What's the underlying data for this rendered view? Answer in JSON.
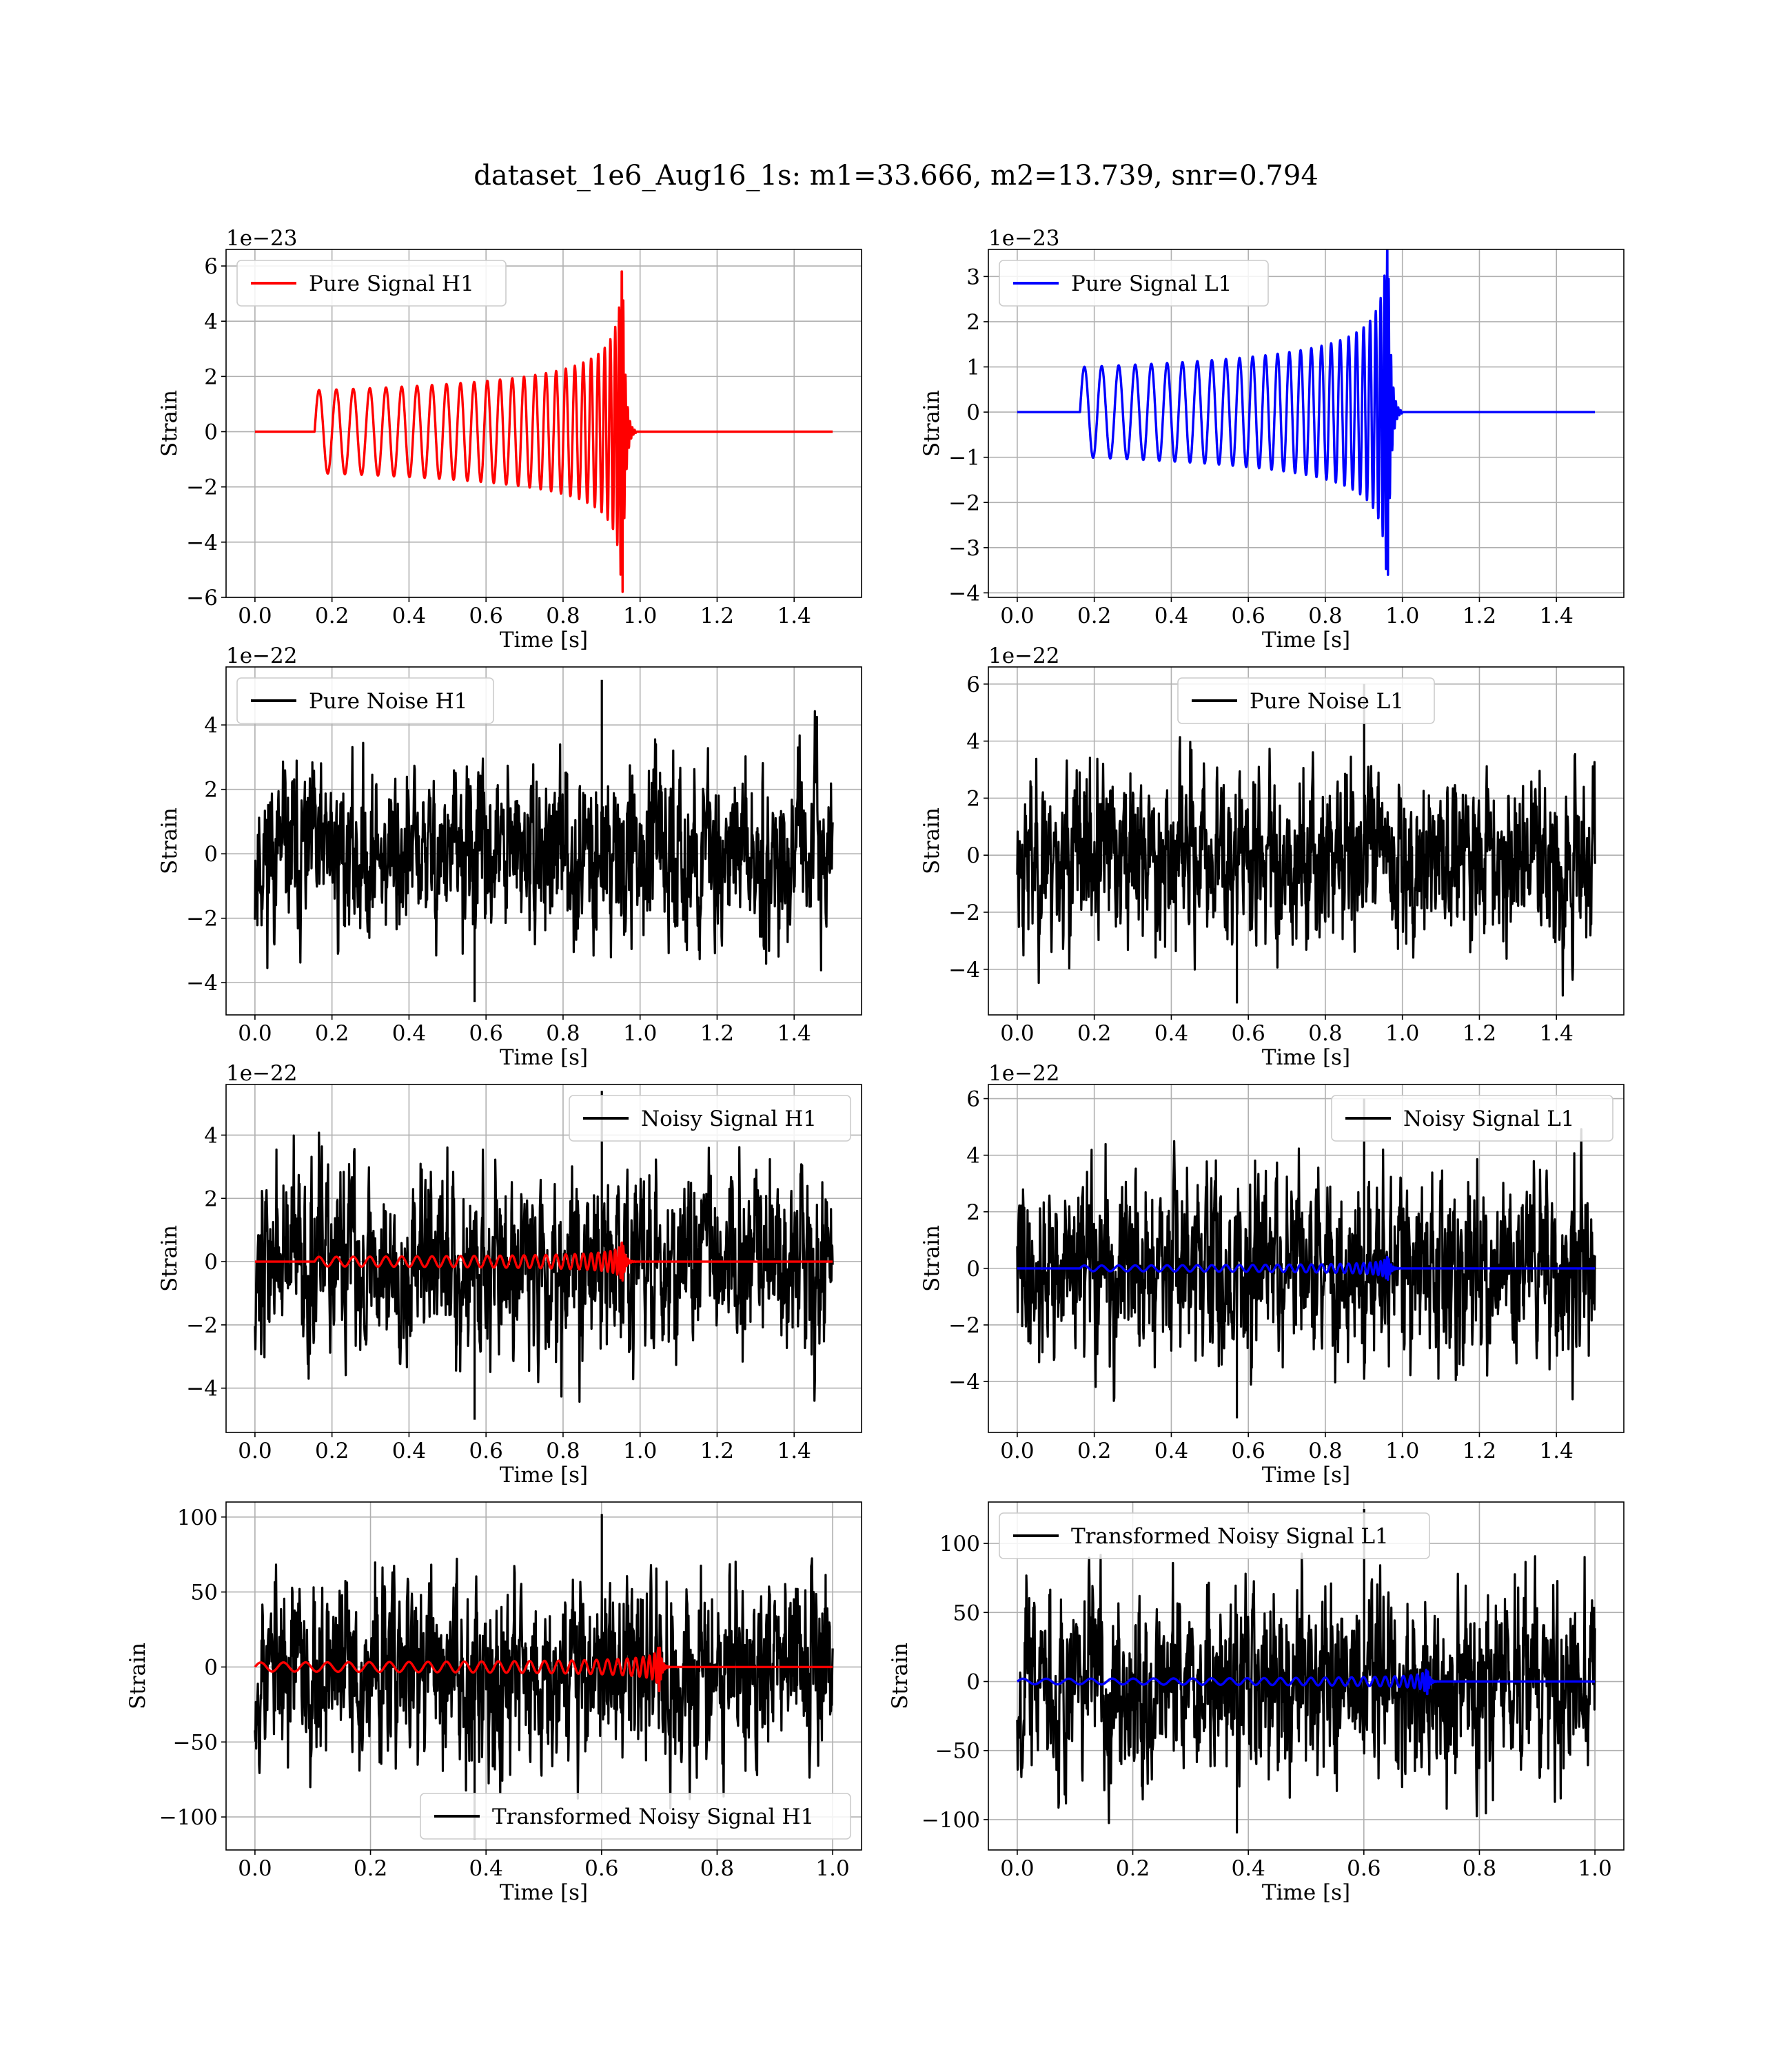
{
  "figure": {
    "title": "dataset_1e6_Aug16_1s: m1=33.666, m2=13.739, snr=0.794"
  },
  "chart_data": [
    {
      "type": "line",
      "id": "pure-signal-h1",
      "legend": "Pure Signal H1",
      "legend_position": "upper left",
      "offset_text": "1e−23",
      "xlabel": "Time [s]",
      "ylabel": "Strain",
      "xlim": [
        -0.075,
        1.575
      ],
      "ylim": [
        -6.0,
        6.6
      ],
      "xticks": [
        0.0,
        0.2,
        0.4,
        0.6,
        0.8,
        1.0,
        1.2,
        1.4
      ],
      "xticklabels": [
        "0.0",
        "0.2",
        "0.4",
        "0.6",
        "0.8",
        "1.0",
        "1.2",
        "1.4"
      ],
      "yticks": [
        -6,
        -4,
        -2,
        0,
        2,
        4,
        6
      ],
      "yticklabels": [
        "−6",
        "−4",
        "−2",
        "0",
        "2",
        "4",
        "6"
      ],
      "grid": true,
      "series": [
        {
          "kind": "chirp",
          "color": "#ff0000",
          "x_start": 0.0,
          "x_end": 1.5,
          "t_start": 0.155,
          "t_merger": 0.955,
          "n_cycles": 28,
          "amp_start": 1.5,
          "amp_peak": 5.8,
          "ringdown_end": 0.99
        }
      ]
    },
    {
      "type": "line",
      "id": "pure-signal-l1",
      "legend": "Pure Signal L1",
      "legend_position": "upper left",
      "offset_text": "1e−23",
      "xlabel": "Time [s]",
      "ylabel": "Strain",
      "xlim": [
        -0.075,
        1.575
      ],
      "ylim": [
        -4.1,
        3.6
      ],
      "xticks": [
        0.0,
        0.2,
        0.4,
        0.6,
        0.8,
        1.0,
        1.2,
        1.4
      ],
      "xticklabels": [
        "0.0",
        "0.2",
        "0.4",
        "0.6",
        "0.8",
        "1.0",
        "1.2",
        "1.4"
      ],
      "yticks": [
        -4,
        -3,
        -2,
        -1,
        0,
        1,
        2,
        3
      ],
      "yticklabels": [
        "−4",
        "−3",
        "−2",
        "−1",
        "0",
        "1",
        "2",
        "3"
      ],
      "grid": true,
      "series": [
        {
          "kind": "chirp",
          "color": "#0000ff",
          "x_start": 0.0,
          "x_end": 1.5,
          "t_start": 0.163,
          "t_merger": 0.963,
          "n_cycles": 28,
          "amp_start": 1.0,
          "amp_peak": 3.6,
          "ringdown_end": 1.0
        }
      ]
    },
    {
      "type": "line",
      "id": "pure-noise-h1",
      "legend": "Pure Noise H1",
      "legend_position": "upper left",
      "offset_text": "1e−22",
      "xlabel": "Time [s]",
      "ylabel": "Strain",
      "xlim": [
        -0.075,
        1.575
      ],
      "ylim": [
        -5.0,
        5.8
      ],
      "xticks": [
        0.0,
        0.2,
        0.4,
        0.6,
        0.8,
        1.0,
        1.2,
        1.4
      ],
      "xticklabels": [
        "0.0",
        "0.2",
        "0.4",
        "0.6",
        "0.8",
        "1.0",
        "1.2",
        "1.4"
      ],
      "yticks": [
        -4,
        -2,
        0,
        2,
        4
      ],
      "yticklabels": [
        "−4",
        "−2",
        "0",
        "2",
        "4"
      ],
      "grid": true,
      "series": [
        {
          "kind": "noise",
          "color": "#000000",
          "x_start": 0.0,
          "x_end": 1.5,
          "min": -4.6,
          "max": 5.4,
          "seed": 11
        }
      ]
    },
    {
      "type": "line",
      "id": "pure-noise-l1",
      "legend": "Pure Noise L1",
      "legend_position": "upper center",
      "offset_text": "1e−22",
      "xlabel": "Time [s]",
      "ylabel": "Strain",
      "xlim": [
        -0.075,
        1.575
      ],
      "ylim": [
        -5.6,
        6.6
      ],
      "xticks": [
        0.0,
        0.2,
        0.4,
        0.6,
        0.8,
        1.0,
        1.2,
        1.4
      ],
      "xticklabels": [
        "0.0",
        "0.2",
        "0.4",
        "0.6",
        "0.8",
        "1.0",
        "1.2",
        "1.4"
      ],
      "yticks": [
        -4,
        -2,
        0,
        2,
        4,
        6
      ],
      "yticklabels": [
        "−4",
        "−2",
        "0",
        "2",
        "4",
        "6"
      ],
      "grid": true,
      "series": [
        {
          "kind": "noise",
          "color": "#000000",
          "x_start": 0.0,
          "x_end": 1.5,
          "min": -5.2,
          "max": 6.0,
          "seed": 23
        }
      ]
    },
    {
      "type": "line",
      "id": "noisy-signal-h1",
      "legend": "Noisy Signal H1",
      "legend_position": "upper right",
      "offset_text": "1e−22",
      "xlabel": "Time [s]",
      "ylabel": "Strain",
      "xlim": [
        -0.075,
        1.575
      ],
      "ylim": [
        -5.4,
        5.6
      ],
      "xticks": [
        0.0,
        0.2,
        0.4,
        0.6,
        0.8,
        1.0,
        1.2,
        1.4
      ],
      "xticklabels": [
        "0.0",
        "0.2",
        "0.4",
        "0.6",
        "0.8",
        "1.0",
        "1.2",
        "1.4"
      ],
      "yticks": [
        -4,
        -2,
        0,
        2,
        4
      ],
      "yticklabels": [
        "−4",
        "−2",
        "0",
        "2",
        "4"
      ],
      "grid": true,
      "series": [
        {
          "kind": "noise",
          "color": "#000000",
          "x_start": 0.0,
          "x_end": 1.5,
          "min": -5.0,
          "max": 5.4,
          "seed": 37
        },
        {
          "kind": "chirp",
          "color": "#ff0000",
          "x_start": 0.0,
          "x_end": 1.5,
          "t_start": 0.155,
          "t_merger": 0.955,
          "n_cycles": 28,
          "amp_start": 0.15,
          "amp_peak": 0.6,
          "ringdown_end": 0.99
        }
      ]
    },
    {
      "type": "line",
      "id": "noisy-signal-l1",
      "legend": "Noisy Signal L1",
      "legend_position": "upper right",
      "offset_text": "1e−22",
      "xlabel": "Time [s]",
      "ylabel": "Strain",
      "xlim": [
        -0.075,
        1.575
      ],
      "ylim": [
        -5.8,
        6.5
      ],
      "xticks": [
        0.0,
        0.2,
        0.4,
        0.6,
        0.8,
        1.0,
        1.2,
        1.4
      ],
      "xticklabels": [
        "0.0",
        "0.2",
        "0.4",
        "0.6",
        "0.8",
        "1.0",
        "1.2",
        "1.4"
      ],
      "yticks": [
        -4,
        -2,
        0,
        2,
        4,
        6
      ],
      "yticklabels": [
        "−4",
        "−2",
        "0",
        "2",
        "4",
        "6"
      ],
      "grid": true,
      "series": [
        {
          "kind": "noise",
          "color": "#000000",
          "x_start": 0.0,
          "x_end": 1.5,
          "min": -5.3,
          "max": 6.0,
          "seed": 41
        },
        {
          "kind": "chirp",
          "color": "#0000ff",
          "x_start": 0.0,
          "x_end": 1.5,
          "t_start": 0.163,
          "t_merger": 0.963,
          "n_cycles": 28,
          "amp_start": 0.1,
          "amp_peak": 0.4,
          "ringdown_end": 1.0
        }
      ]
    },
    {
      "type": "line",
      "id": "transformed-noisy-signal-h1",
      "legend": "Transformed Noisy Signal H1",
      "legend_position": "lower right",
      "offset_text": "",
      "xlabel": "Time [s]",
      "ylabel": "Strain",
      "xlim": [
        -0.05,
        1.05
      ],
      "ylim": [
        -122,
        110
      ],
      "xticks": [
        0.0,
        0.2,
        0.4,
        0.6,
        0.8,
        1.0
      ],
      "xticklabels": [
        "0.0",
        "0.2",
        "0.4",
        "0.6",
        "0.8",
        "1.0"
      ],
      "yticks": [
        -100,
        -50,
        0,
        50,
        100
      ],
      "yticklabels": [
        "−100",
        "−50",
        "0",
        "50",
        "100"
      ],
      "grid": true,
      "series": [
        {
          "kind": "noise",
          "color": "#000000",
          "x_start": 0.0,
          "x_end": 1.0,
          "min": -115,
          "max": 102,
          "seed": 53
        },
        {
          "kind": "chirp",
          "color": "#ff0000",
          "x_start": 0.0,
          "x_end": 1.0,
          "t_start": 0.0,
          "t_merger": 0.7,
          "n_cycles": 28,
          "amp_start": 3,
          "amp_peak": 16,
          "ringdown_end": 0.72
        }
      ]
    },
    {
      "type": "line",
      "id": "transformed-noisy-signal-l1",
      "legend": "Transformed Noisy Signal L1",
      "legend_position": "upper left",
      "offset_text": "",
      "xlabel": "Time [s]",
      "ylabel": "Strain",
      "xlim": [
        -0.05,
        1.05
      ],
      "ylim": [
        -122,
        130
      ],
      "xticks": [
        0.0,
        0.2,
        0.4,
        0.6,
        0.8,
        1.0
      ],
      "xticklabels": [
        "0.0",
        "0.2",
        "0.4",
        "0.6",
        "0.8",
        "1.0"
      ],
      "yticks": [
        -100,
        -50,
        0,
        50,
        100
      ],
      "yticklabels": [
        "−100",
        "−50",
        "0",
        "50",
        "100"
      ],
      "grid": true,
      "series": [
        {
          "kind": "noise",
          "color": "#000000",
          "x_start": 0.0,
          "x_end": 1.0,
          "min": -110,
          "max": 125,
          "seed": 67
        },
        {
          "kind": "chirp",
          "color": "#0000ff",
          "x_start": 0.0,
          "x_end": 1.0,
          "t_start": 0.0,
          "t_merger": 0.71,
          "n_cycles": 28,
          "amp_start": 2,
          "amp_peak": 9,
          "ringdown_end": 0.73
        }
      ]
    }
  ]
}
